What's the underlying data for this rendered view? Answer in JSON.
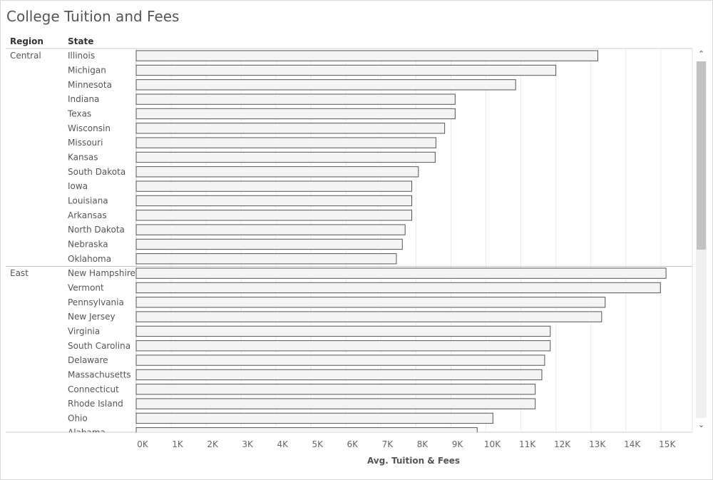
{
  "title": "College Tuition and Fees",
  "headers": {
    "region": "Region",
    "state": "State"
  },
  "chart_data": {
    "type": "bar",
    "orientation": "horizontal",
    "title": "College Tuition and Fees",
    "xlabel": "Avg. Tuition & Fees",
    "ylabel": "",
    "xlim": [
      0,
      15000
    ],
    "xticks": [
      "0K",
      "1K",
      "2K",
      "3K",
      "4K",
      "5K",
      "6K",
      "7K",
      "8K",
      "9K",
      "10K",
      "11K",
      "12K",
      "13K",
      "14K",
      "15K"
    ],
    "grid": true,
    "colors": {
      "bar_fill": "#f4f4f4",
      "bar_stroke": "#555555",
      "grid": "#ececec"
    },
    "groups": [
      {
        "region": "Central",
        "states": [
          "Illinois",
          "Michigan",
          "Minnesota",
          "Indiana",
          "Texas",
          "Wisconsin",
          "Missouri",
          "Kansas",
          "South Dakota",
          "Iowa",
          "Louisiana",
          "Arkansas",
          "North Dakota",
          "Nebraska",
          "Oklahoma"
        ],
        "values": [
          13200,
          12000,
          10850,
          9120,
          9120,
          8820,
          8570,
          8550,
          8070,
          7880,
          7880,
          7880,
          7690,
          7610,
          7440
        ]
      },
      {
        "region": "East",
        "states": [
          "New Hampshire",
          "Vermont",
          "Pennsylvania",
          "New Jersey",
          "Virginia",
          "South Carolina",
          "Delaware",
          "Massachusetts",
          "Connecticut",
          "Rhode Island",
          "Ohio",
          "Alabama"
        ],
        "values": [
          15150,
          14990,
          13410,
          13310,
          11840,
          11840,
          11680,
          11600,
          11410,
          11410,
          10200,
          9750
        ]
      }
    ]
  },
  "scrollbar": {
    "up_icon": "chevron-up-icon",
    "down_icon": "chevron-down-icon",
    "up_glyph": "⌃",
    "down_glyph": "⌄"
  }
}
